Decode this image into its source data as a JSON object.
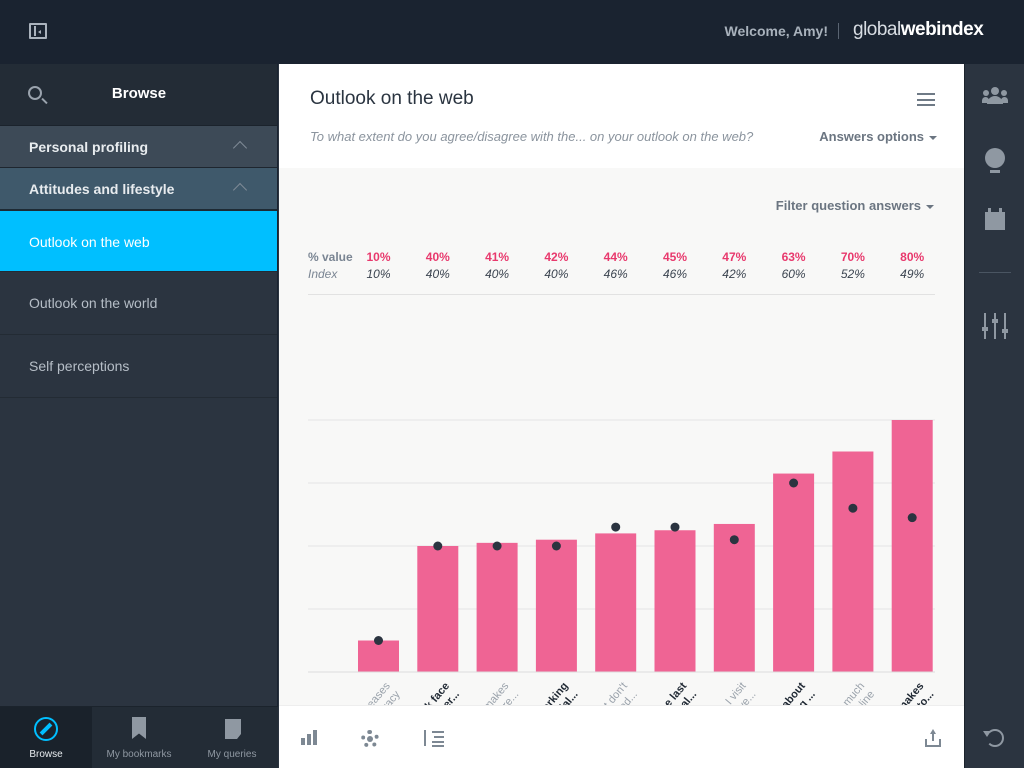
{
  "header": {
    "welcome": "Welcome, Amy!",
    "logo_light": "global",
    "logo_mid": "web",
    "logo_bold": "index"
  },
  "sidebar": {
    "title": "Browse",
    "categories": [
      {
        "label": "Personal profiling"
      },
      {
        "label": "Attitudes and lifestyle"
      }
    ],
    "items": [
      {
        "label": "Outlook on the web",
        "active": true
      },
      {
        "label": "Outlook on the world"
      },
      {
        "label": "Self perceptions"
      }
    ],
    "bottom_nav": [
      {
        "label": "Browse",
        "icon": "compass-icon"
      },
      {
        "label": "My bookmarks",
        "icon": "bookmark-icon"
      },
      {
        "label": "My queries",
        "icon": "document-icon"
      }
    ]
  },
  "main": {
    "title": "Outlook on the web",
    "question": "To what extent do you agree/disagree with the... on your outlook on the web?",
    "answers_options": "Answers options",
    "filter": "Filter question answers",
    "value_header": "% value",
    "index_header": "Index"
  },
  "colors": {
    "accent": "#00bfff",
    "bar": "#ef6494",
    "value_text": "#e8396d",
    "dot": "#2b3440"
  },
  "chart_data": {
    "type": "bar",
    "title": "Outlook on the web",
    "categories": [
      [
        "The web increases",
        "democracy"
      ],
      [
        "I prefer to talk face",
        "to face than over..."
      ],
      [
        "Technology makes",
        "life more..."
      ],
      [
        "Online networking",
        "leads to social..."
      ],
      [
        "I just don't",
        "understand..."
      ],
      [
        "Owning the last",
        "technological..."
      ],
      [
        "All the website I visit",
        "are in my native..."
      ],
      [
        "I'm concerned about",
        "internet eroding ..."
      ],
      [
        "There's too much",
        "choice online"
      ],
      [
        "The internet makes",
        "me feel closer to..."
      ]
    ],
    "label_dark": [
      false,
      true,
      false,
      true,
      false,
      true,
      false,
      true,
      false,
      true
    ],
    "series": [
      {
        "name": "% value",
        "values": [
          10,
          40,
          41,
          42,
          44,
          45,
          47,
          63,
          70,
          80
        ],
        "display": [
          "10%",
          "40%",
          "41%",
          "42%",
          "44%",
          "45%",
          "47%",
          "63%",
          "70%",
          "80%"
        ]
      },
      {
        "name": "Index",
        "values": [
          10,
          40,
          40,
          40,
          46,
          46,
          42,
          60,
          52,
          49
        ],
        "display": [
          "10%",
          "40%",
          "40%",
          "40%",
          "46%",
          "46%",
          "42%",
          "60%",
          "52%",
          "49%"
        ]
      }
    ],
    "ylim": [
      0,
      80
    ],
    "grid": true
  }
}
